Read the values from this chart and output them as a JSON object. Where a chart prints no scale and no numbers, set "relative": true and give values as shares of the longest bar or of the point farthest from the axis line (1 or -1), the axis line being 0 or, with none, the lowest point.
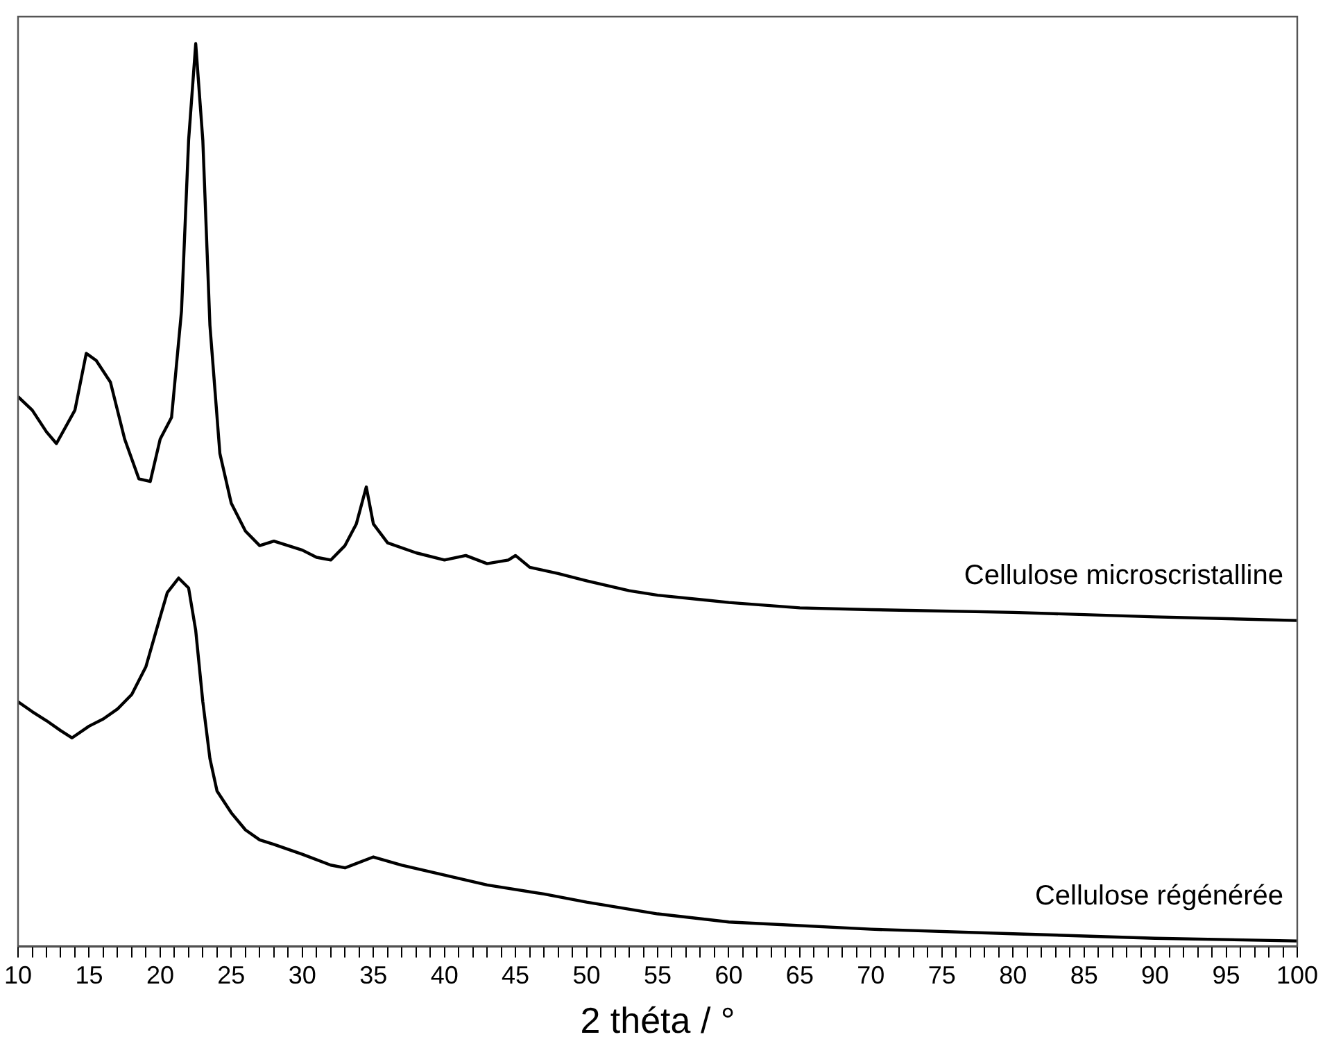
{
  "chart_data": {
    "type": "line",
    "xlabel": "2 théta / °",
    "relative": true,
    "legend": false,
    "grid": false,
    "marker": "none",
    "line_style": "solid",
    "tick_labels": "x",
    "xlim": [
      10,
      100
    ],
    "xticks": [
      10,
      {
        "value": 11,
        "label": null
      },
      {
        "value": 12,
        "label": null
      },
      {
        "value": 13,
        "label": null
      },
      {
        "value": 14,
        "label": null
      },
      15,
      {
        "value": 16,
        "label": null
      },
      {
        "value": 17,
        "label": null
      },
      {
        "value": 18,
        "label": null
      },
      {
        "value": 19,
        "label": null
      },
      20,
      {
        "value": 21,
        "label": null
      },
      {
        "value": 22,
        "label": null
      },
      {
        "value": 23,
        "label": null
      },
      {
        "value": 24,
        "label": null
      },
      25,
      {
        "value": 26,
        "label": null
      },
      {
        "value": 27,
        "label": null
      },
      {
        "value": 28,
        "label": null
      },
      {
        "value": 29,
        "label": null
      },
      30,
      {
        "value": 31,
        "label": null
      },
      {
        "value": 32,
        "label": null
      },
      {
        "value": 33,
        "label": null
      },
      {
        "value": 34,
        "label": null
      },
      35,
      {
        "value": 36,
        "label": null
      },
      {
        "value": 37,
        "label": null
      },
      {
        "value": 38,
        "label": null
      },
      {
        "value": 39,
        "label": null
      },
      40,
      {
        "value": 41,
        "label": null
      },
      {
        "value": 42,
        "label": null
      },
      {
        "value": 43,
        "label": null
      },
      {
        "value": 44,
        "label": null
      },
      45,
      {
        "value": 46,
        "label": null
      },
      {
        "value": 47,
        "label": null
      },
      {
        "value": 48,
        "label": null
      },
      {
        "value": 49,
        "label": null
      },
      50,
      {
        "value": 51,
        "label": null
      },
      {
        "value": 52,
        "label": null
      },
      {
        "value": 53,
        "label": null
      },
      {
        "value": 54,
        "label": null
      },
      55,
      {
        "value": 56,
        "label": null
      },
      {
        "value": 57,
        "label": null
      },
      {
        "value": 58,
        "label": null
      },
      {
        "value": 59,
        "label": null
      },
      60,
      {
        "value": 61,
        "label": null
      },
      {
        "value": 62,
        "label": null
      },
      {
        "value": 63,
        "label": null
      },
      {
        "value": 64,
        "label": null
      },
      65,
      {
        "value": 66,
        "label": null
      },
      {
        "value": 67,
        "label": null
      },
      {
        "value": 68,
        "label": null
      },
      {
        "value": 69,
        "label": null
      },
      70,
      {
        "value": 71,
        "label": null
      },
      {
        "value": 72,
        "label": null
      },
      {
        "value": 73,
        "label": null
      },
      {
        "value": 74,
        "label": null
      },
      75,
      {
        "value": 76,
        "label": null
      },
      {
        "value": 77,
        "label": null
      },
      {
        "value": 78,
        "label": null
      },
      {
        "value": 79,
        "label": null
      },
      80,
      {
        "value": 81,
        "label": null
      },
      {
        "value": 82,
        "label": null
      },
      {
        "value": 83,
        "label": null
      },
      {
        "value": 84,
        "label": null
      },
      85,
      {
        "value": 86,
        "label": null
      },
      {
        "value": 87,
        "label": null
      },
      {
        "value": 88,
        "label": null
      },
      {
        "value": 89,
        "label": null
      },
      90,
      {
        "value": 91,
        "label": null
      },
      {
        "value": 92,
        "label": null
      },
      {
        "value": 93,
        "label": null
      },
      {
        "value": 94,
        "label": null
      },
      95,
      {
        "value": 96,
        "label": null
      },
      {
        "value": 97,
        "label": null
      },
      {
        "value": 98,
        "label": null
      },
      {
        "value": 99,
        "label": null
      },
      100
    ],
    "series": [
      {
        "name": "Cellulose microscristalline",
        "color": "#000000",
        "x": [
          10,
          11,
          12,
          12.7,
          14,
          14.8,
          15.5,
          16.5,
          17.5,
          18.5,
          19.3,
          20,
          20.8,
          21.5,
          22,
          22.5,
          23,
          23.5,
          24.2,
          25,
          26,
          27,
          28,
          29,
          30,
          31,
          32,
          33,
          33.8,
          34.5,
          35,
          36,
          38,
          40,
          41.5,
          43,
          44.5,
          45,
          46,
          48,
          50,
          53,
          55,
          60,
          65,
          70,
          80,
          90,
          100
        ],
        "values": [
          0.609,
          0.594,
          0.57,
          0.557,
          0.594,
          0.657,
          0.649,
          0.625,
          0.562,
          0.518,
          0.515,
          0.562,
          0.586,
          0.704,
          0.893,
          1,
          0.893,
          0.688,
          0.546,
          0.491,
          0.46,
          0.444,
          0.449,
          0.444,
          0.439,
          0.431,
          0.428,
          0.444,
          0.468,
          0.509,
          0.468,
          0.447,
          0.436,
          0.428,
          0.433,
          0.424,
          0.428,
          0.433,
          0.42,
          0.413,
          0.405,
          0.394,
          0.389,
          0.381,
          0.375,
          0.373,
          0.37,
          0.365,
          0.361
        ]
      },
      {
        "name": "Cellulose régénérée",
        "color": "#000000",
        "x": [
          10,
          11,
          12,
          13,
          13.8,
          15,
          16,
          17,
          18,
          19,
          20,
          20.5,
          21.3,
          22,
          22.5,
          23,
          23.5,
          24,
          25,
          26,
          27,
          28,
          30,
          32,
          33,
          35,
          37,
          40,
          43,
          47,
          50,
          55,
          60,
          70,
          80,
          90,
          100
        ],
        "values": [
          0.271,
          0.26,
          0.25,
          0.239,
          0.231,
          0.244,
          0.252,
          0.263,
          0.279,
          0.31,
          0.365,
          0.392,
          0.408,
          0.397,
          0.35,
          0.271,
          0.208,
          0.172,
          0.148,
          0.129,
          0.118,
          0.113,
          0.102,
          0.09,
          0.087,
          0.099,
          0.09,
          0.079,
          0.068,
          0.058,
          0.049,
          0.036,
          0.027,
          0.019,
          0.014,
          0.009,
          0.006
        ]
      }
    ]
  }
}
